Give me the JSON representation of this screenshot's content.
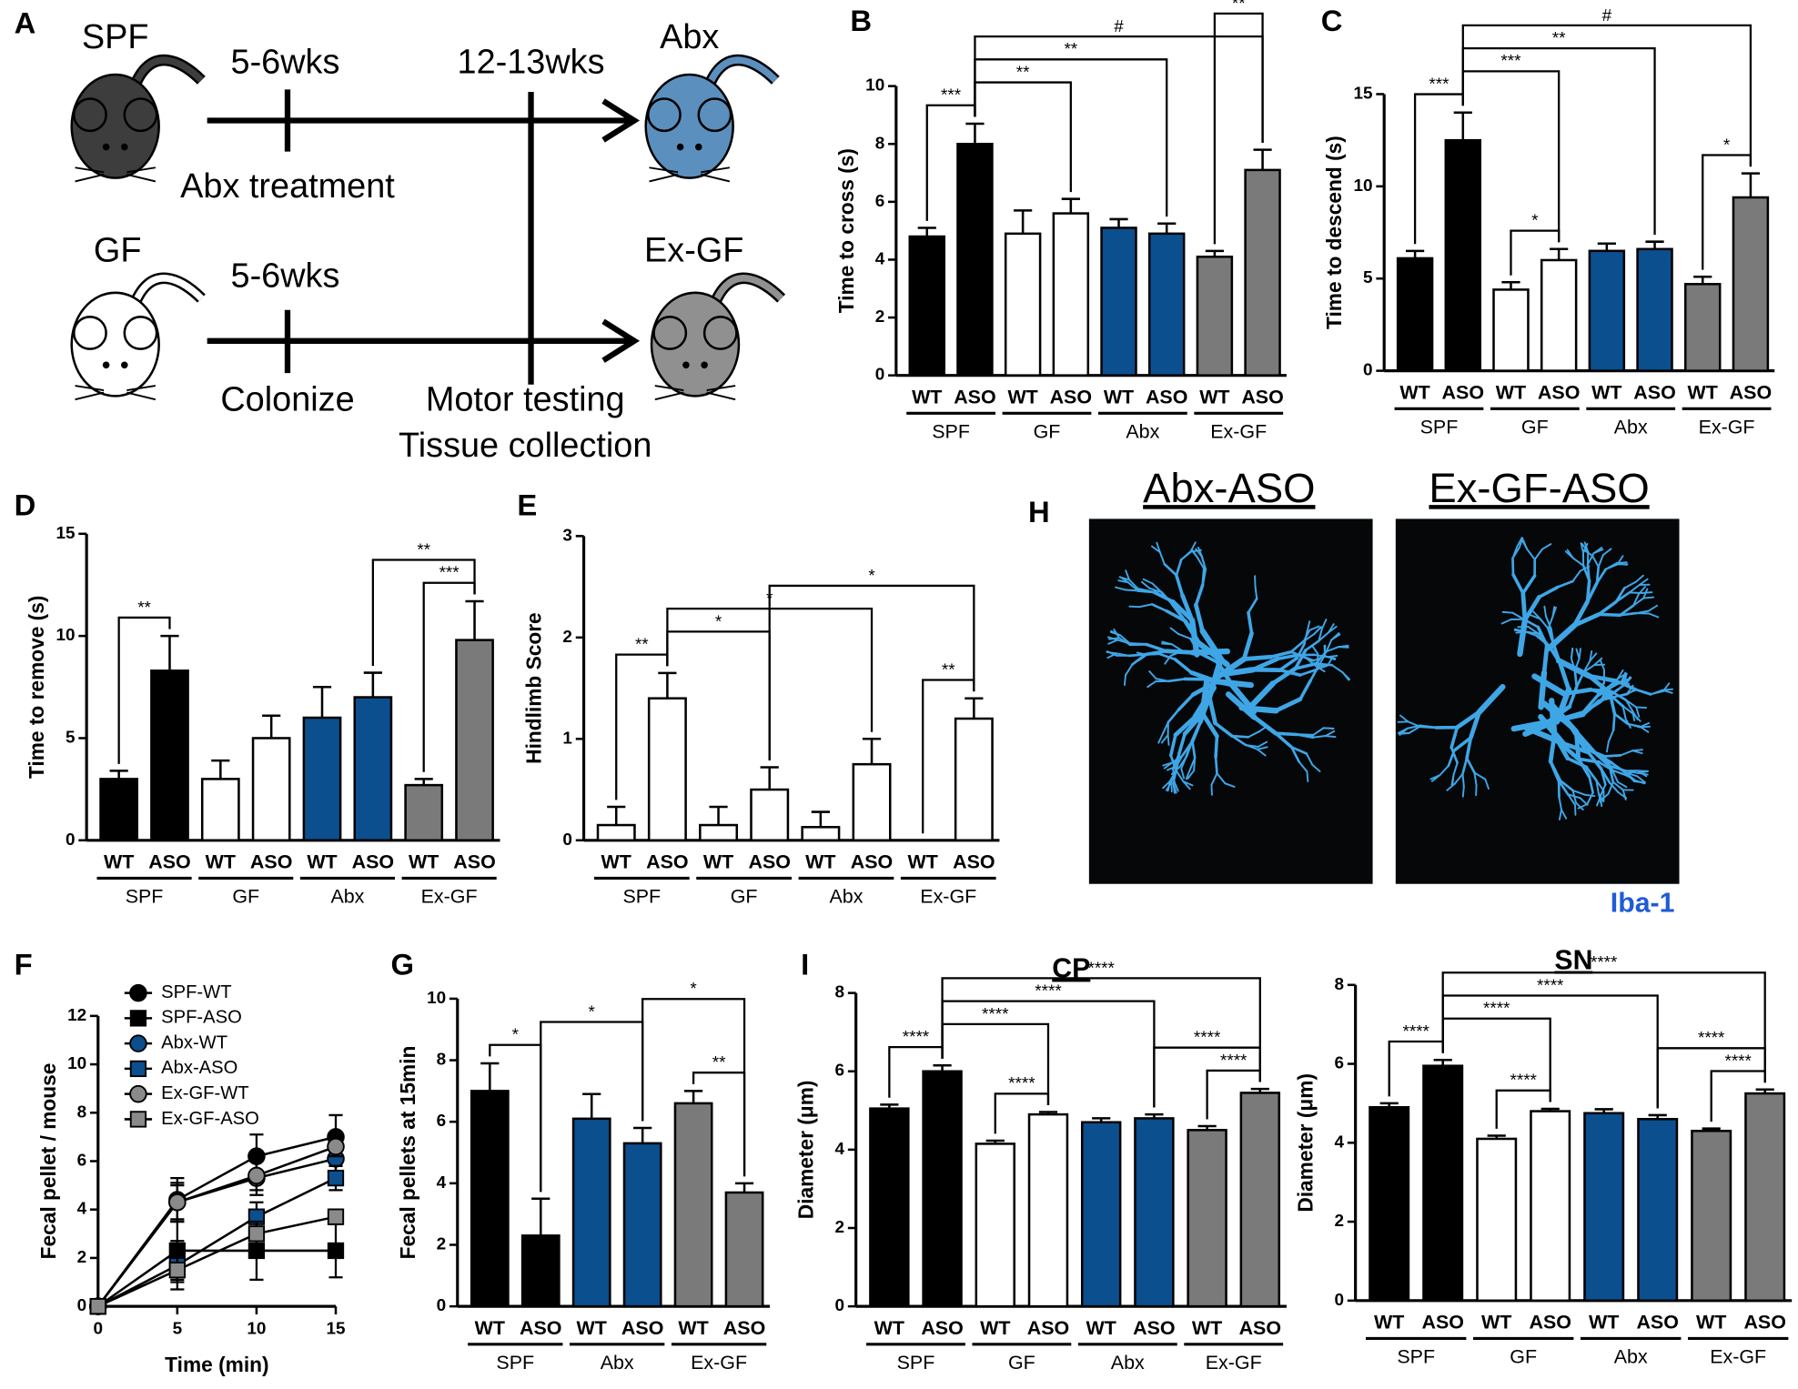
{
  "diagram": {
    "letter": "A",
    "spf": "SPF",
    "gf": "GF",
    "top_time1": "5-6wks",
    "top_time2": "12-13wks",
    "abx": "Abx",
    "abx_treatment": "Abx treatment",
    "bottom_time1": "5-6wks",
    "exgf": "Ex-GF",
    "colonize": "Colonize",
    "motor": "Motor testing",
    "tissue": "Tissue collection"
  },
  "images": {
    "letter": "H",
    "left_title": "Abx-ASO",
    "right_title": "Ex-GF-ASO",
    "stain": "Iba-1"
  },
  "chart_data": [
    {
      "type": "bar",
      "panel": "B",
      "ylabel": "Time to cross (s)",
      "categories": [
        "WT",
        "ASO",
        "WT",
        "ASO",
        "WT",
        "ASO",
        "WT",
        "ASO"
      ],
      "groups": [
        "SPF",
        "GF",
        "Abx",
        "Ex-GF"
      ],
      "values": [
        4.8,
        8.0,
        4.9,
        5.6,
        5.1,
        4.9,
        4.1,
        7.1
      ],
      "errors": [
        0.3,
        0.7,
        0.8,
        0.5,
        0.3,
        0.35,
        0.2,
        0.7
      ],
      "colors": [
        "#000000",
        "#000000",
        "#ffffff",
        "#ffffff",
        "#0b4f8e",
        "#0b4f8e",
        "#7a7a7a",
        "#7a7a7a"
      ],
      "ylim": [
        0,
        10
      ],
      "yticks": [
        0,
        2,
        4,
        6,
        8,
        10
      ],
      "comparisons": [
        {
          "label": "***",
          "bars": [
            0,
            1
          ]
        },
        {
          "label": "**",
          "bars": [
            1,
            3
          ]
        },
        {
          "label": "**",
          "bars": [
            1,
            5
          ]
        },
        {
          "label": "#",
          "bars": [
            1,
            7
          ]
        },
        {
          "label": "**",
          "bars": [
            6,
            7
          ]
        }
      ]
    },
    {
      "type": "bar",
      "panel": "C",
      "ylabel": "Time to descend (s)",
      "categories": [
        "WT",
        "ASO",
        "WT",
        "ASO",
        "WT",
        "ASO",
        "WT",
        "ASO"
      ],
      "groups": [
        "SPF",
        "GF",
        "Abx",
        "Ex-GF"
      ],
      "values": [
        6.1,
        12.5,
        4.4,
        6.0,
        6.5,
        6.6,
        4.7,
        9.4
      ],
      "errors": [
        0.4,
        1.5,
        0.4,
        0.6,
        0.4,
        0.4,
        0.4,
        1.3
      ],
      "colors": [
        "#000000",
        "#000000",
        "#ffffff",
        "#ffffff",
        "#0b4f8e",
        "#0b4f8e",
        "#7a7a7a",
        "#7a7a7a"
      ],
      "ylim": [
        0,
        15
      ],
      "yticks": [
        0,
        5,
        10,
        15
      ],
      "comparisons": [
        {
          "label": "***",
          "bars": [
            0,
            1
          ]
        },
        {
          "label": "*",
          "bars": [
            2,
            3
          ]
        },
        {
          "label": "*",
          "bars": [
            6,
            7
          ]
        },
        {
          "label": "***",
          "bars": [
            1,
            3
          ]
        },
        {
          "label": "**",
          "bars": [
            1,
            5
          ]
        },
        {
          "label": "#",
          "bars": [
            1,
            7
          ]
        }
      ]
    },
    {
      "type": "bar",
      "panel": "D",
      "ylabel": "Time to remove (s)",
      "categories": [
        "WT",
        "ASO",
        "WT",
        "ASO",
        "WT",
        "ASO",
        "WT",
        "ASO"
      ],
      "groups": [
        "SPF",
        "GF",
        "Abx",
        "Ex-GF"
      ],
      "values": [
        3.0,
        8.3,
        3.0,
        5.0,
        6.0,
        7.0,
        2.7,
        9.8
      ],
      "errors": [
        0.4,
        1.7,
        0.9,
        1.1,
        1.5,
        1.2,
        0.3,
        1.9
      ],
      "colors": [
        "#000000",
        "#000000",
        "#ffffff",
        "#ffffff",
        "#0b4f8e",
        "#0b4f8e",
        "#7a7a7a",
        "#7a7a7a"
      ],
      "ylim": [
        0,
        15
      ],
      "yticks": [
        0,
        5,
        10,
        15
      ],
      "comparisons": [
        {
          "label": "**",
          "bars": [
            0,
            1
          ]
        },
        {
          "label": "***",
          "bars": [
            6,
            7
          ]
        },
        {
          "label": "**",
          "bars": [
            5,
            7
          ]
        }
      ]
    },
    {
      "type": "bar",
      "panel": "E",
      "ylabel": "Hindlimb Score",
      "categories": [
        "WT",
        "ASO",
        "WT",
        "ASO",
        "WT",
        "ASO",
        "WT",
        "ASO"
      ],
      "groups": [
        "SPF",
        "GF",
        "Abx",
        "Ex-GF"
      ],
      "values": [
        0.15,
        1.4,
        0.15,
        0.5,
        0.13,
        0.75,
        0,
        1.2
      ],
      "errors": [
        0.18,
        0.25,
        0.18,
        0.22,
        0.15,
        0.25,
        0,
        0.2
      ],
      "colors": [
        "#ffffff",
        "#ffffff",
        "#ffffff",
        "#ffffff",
        "#ffffff",
        "#ffffff",
        "#ffffff",
        "#ffffff"
      ],
      "ylim": [
        0,
        3
      ],
      "yticks": [
        0,
        1,
        2,
        3
      ],
      "comparisons": [
        {
          "label": "**",
          "bars": [
            0,
            1
          ]
        },
        {
          "label": "**",
          "bars": [
            6,
            7
          ]
        },
        {
          "label": "*",
          "bars": [
            1,
            3
          ]
        },
        {
          "label": "*",
          "bars": [
            1,
            5
          ]
        },
        {
          "label": "*",
          "bars": [
            3,
            7
          ]
        }
      ]
    },
    {
      "type": "line",
      "panel": "F",
      "ylabel": "Fecal pellet / mouse",
      "xlabel": "Time (min)",
      "x": [
        0,
        5,
        10,
        15
      ],
      "xlim": [
        0,
        15
      ],
      "xticks": [
        0,
        5,
        10,
        15
      ],
      "ylim": [
        0,
        12
      ],
      "yticks": [
        0,
        2,
        4,
        6,
        8,
        10,
        12
      ],
      "series": [
        {
          "name": "SPF-WT",
          "color": "#000000",
          "marker": "circle",
          "values": [
            0,
            4.4,
            6.2,
            7.0
          ],
          "errors": [
            0,
            0.9,
            0.9,
            0.9
          ]
        },
        {
          "name": "SPF-ASO",
          "color": "#000000",
          "marker": "square",
          "values": [
            0,
            2.3,
            2.3,
            2.3
          ],
          "errors": [
            0,
            1.2,
            1.2,
            1.1
          ]
        },
        {
          "name": "Abx-WT",
          "color": "#0b4f8e",
          "marker": "circle",
          "values": [
            0,
            4.3,
            5.3,
            6.1
          ],
          "errors": [
            0,
            0.8,
            0.7,
            0.8
          ]
        },
        {
          "name": "Abx-ASO",
          "color": "#0b4f8e",
          "marker": "square",
          "values": [
            0,
            1.7,
            3.7,
            5.3
          ],
          "errors": [
            0,
            1.0,
            0.6,
            0.5
          ]
        },
        {
          "name": "Ex-GF-WT",
          "color": "#8a8a8a",
          "marker": "circle",
          "values": [
            0,
            4.3,
            5.4,
            6.6
          ],
          "errors": [
            0,
            0.7,
            0.6,
            0.4
          ]
        },
        {
          "name": "Ex-GF-ASO",
          "color": "#8a8a8a",
          "marker": "square",
          "values": [
            0,
            1.5,
            3.0,
            3.7
          ],
          "errors": [
            0,
            0.5,
            0.5,
            0.3
          ]
        }
      ]
    },
    {
      "type": "bar",
      "panel": "G",
      "ylabel": "Fecal pellets at 15min",
      "categories": [
        "WT",
        "ASO",
        "WT",
        "ASO",
        "WT",
        "ASO"
      ],
      "groups": [
        "SPF",
        "Abx",
        "Ex-GF"
      ],
      "values": [
        7.0,
        2.3,
        6.1,
        5.3,
        6.6,
        3.7
      ],
      "errors": [
        0.9,
        1.2,
        0.8,
        0.5,
        0.4,
        0.3
      ],
      "colors": [
        "#000000",
        "#000000",
        "#0b4f8e",
        "#0b4f8e",
        "#7a7a7a",
        "#7a7a7a"
      ],
      "ylim": [
        0,
        10
      ],
      "yticks": [
        0,
        2,
        4,
        6,
        8,
        10
      ],
      "comparisons": [
        {
          "label": "*",
          "bars": [
            0,
            1
          ]
        },
        {
          "label": "*",
          "bars": [
            1,
            3
          ]
        },
        {
          "label": "**",
          "bars": [
            4,
            5
          ]
        },
        {
          "label": "*",
          "bars": [
            3,
            5
          ]
        }
      ]
    },
    {
      "type": "bar",
      "panel": "I",
      "title": "CP",
      "ylabel": "Diameter (μm)",
      "categories": [
        "WT",
        "ASO",
        "WT",
        "ASO",
        "WT",
        "ASO",
        "WT",
        "ASO"
      ],
      "groups": [
        "SPF",
        "GF",
        "Abx",
        "Ex-GF"
      ],
      "values": [
        5.05,
        6.0,
        4.15,
        4.9,
        4.7,
        4.8,
        4.5,
        5.45
      ],
      "errors": [
        0.1,
        0.15,
        0.08,
        0.06,
        0.1,
        0.1,
        0.1,
        0.1
      ],
      "colors": [
        "#000000",
        "#000000",
        "#ffffff",
        "#ffffff",
        "#0b4f8e",
        "#0b4f8e",
        "#7a7a7a",
        "#7a7a7a"
      ],
      "ylim": [
        0,
        8
      ],
      "yticks": [
        0,
        2,
        4,
        6,
        8
      ],
      "comparisons": [
        {
          "label": "****",
          "bars": [
            0,
            1
          ]
        },
        {
          "label": "****",
          "bars": [
            2,
            3
          ]
        },
        {
          "label": "****",
          "bars": [
            6,
            7
          ]
        },
        {
          "label": "****",
          "bars": [
            5,
            7
          ]
        },
        {
          "label": "****",
          "bars": [
            1,
            3
          ]
        },
        {
          "label": "****",
          "bars": [
            1,
            5
          ]
        },
        {
          "label": "****",
          "bars": [
            1,
            7
          ]
        }
      ]
    },
    {
      "type": "bar",
      "title": "SN",
      "ylabel": "Diameter (μm)",
      "categories": [
        "WT",
        "ASO",
        "WT",
        "ASO",
        "WT",
        "ASO",
        "WT",
        "ASO"
      ],
      "groups": [
        "SPF",
        "GF",
        "Abx",
        "Ex-GF"
      ],
      "values": [
        4.9,
        5.95,
        4.1,
        4.8,
        4.75,
        4.6,
        4.3,
        5.25
      ],
      "errors": [
        0.1,
        0.15,
        0.08,
        0.06,
        0.1,
        0.1,
        0.06,
        0.1
      ],
      "colors": [
        "#000000",
        "#000000",
        "#ffffff",
        "#ffffff",
        "#0b4f8e",
        "#0b4f8e",
        "#7a7a7a",
        "#7a7a7a"
      ],
      "ylim": [
        0,
        8
      ],
      "yticks": [
        0,
        2,
        4,
        6,
        8
      ],
      "comparisons": [
        {
          "label": "****",
          "bars": [
            0,
            1
          ]
        },
        {
          "label": "****",
          "bars": [
            2,
            3
          ]
        },
        {
          "label": "****",
          "bars": [
            6,
            7
          ]
        },
        {
          "label": "****",
          "bars": [
            5,
            7
          ]
        },
        {
          "label": "****",
          "bars": [
            1,
            3
          ]
        },
        {
          "label": "****",
          "bars": [
            1,
            5
          ]
        },
        {
          "label": "****",
          "bars": [
            1,
            7
          ]
        }
      ]
    }
  ]
}
